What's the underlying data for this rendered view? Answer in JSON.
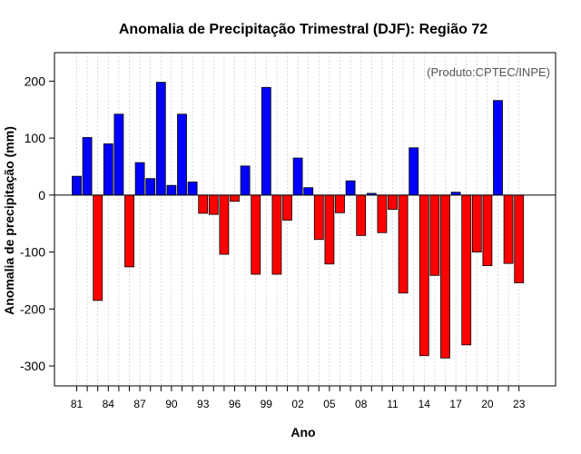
{
  "chart_data": {
    "type": "bar",
    "title": "Anomalia de Precipitação Trimestral (DJF): Região 72",
    "xlabel": "Ano",
    "ylabel": "Anomalia de precipitação (mm)",
    "annotation": "(Produto:CPTEC/INPE)",
    "ylim": [
      -335,
      250
    ],
    "yticks": [
      -300,
      -200,
      -100,
      0,
      100,
      200
    ],
    "grid": true,
    "positive_color": "#0000ff",
    "negative_color": "#ff0000",
    "years": [
      1981,
      1982,
      1983,
      1984,
      1985,
      1986,
      1987,
      1988,
      1989,
      1990,
      1991,
      1992,
      1993,
      1994,
      1995,
      1996,
      1997,
      1998,
      1999,
      2000,
      2001,
      2002,
      2003,
      2004,
      2005,
      2006,
      2007,
      2008,
      2009,
      2010,
      2011,
      2012,
      2013,
      2014,
      2015,
      2016,
      2017,
      2018,
      2019,
      2020,
      2021,
      2022,
      2023
    ],
    "values": [
      33,
      101,
      -185,
      90,
      142,
      -126,
      57,
      29,
      198,
      17,
      142,
      23,
      -32,
      -34,
      -104,
      -11,
      51,
      -139,
      189,
      -139,
      -44,
      65,
      13,
      -78,
      -121,
      -31,
      25,
      -71,
      3,
      -66,
      -25,
      -172,
      83,
      -282,
      -141,
      -286,
      5,
      -263,
      -100,
      -124,
      166,
      -120,
      -154
    ],
    "xtick_labels": [
      "81",
      "84",
      "87",
      "90",
      "93",
      "96",
      "99",
      "02",
      "05",
      "08",
      "11",
      "14",
      "17",
      "20",
      "23"
    ],
    "xtick_years": [
      1981,
      1984,
      1987,
      1990,
      1993,
      1996,
      1999,
      2002,
      2005,
      2008,
      2011,
      2014,
      2017,
      2020,
      2023
    ]
  }
}
